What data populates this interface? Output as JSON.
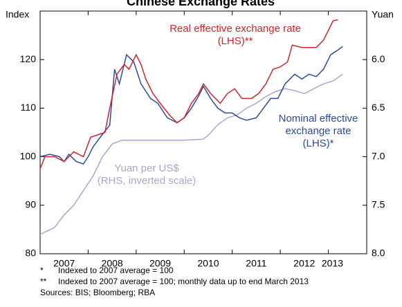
{
  "chart_data": {
    "type": "line",
    "title": "Chinese Exchange Rates",
    "ylabel": "Index",
    "y2label": "Yuan",
    "xlim": [
      2007,
      2013.8
    ],
    "xticks": [
      2007,
      2008,
      2009,
      2010,
      2011,
      2012,
      2013
    ],
    "xlabels": [
      "2007",
      "2008",
      "2009",
      "2010",
      "2011",
      "2012",
      "2013"
    ],
    "ylim": [
      80,
      130
    ],
    "yticks": [
      80,
      90,
      100,
      110,
      120
    ],
    "y2lim": [
      8.0,
      5.5
    ],
    "y2ticks": [
      {
        "value": 8.0,
        "label": "8.0"
      },
      7.5,
      {
        "value": 7.0,
        "label": "7.0"
      },
      6.5,
      {
        "value": 6.0,
        "label": "6.0"
      }
    ],
    "series": [
      {
        "label_lines": [
          "Real effective exchange rate",
          "(LHS)**"
        ],
        "color": "#d1232a",
        "x": [
          2007.0,
          2007.1,
          2007.3,
          2007.5,
          2007.7,
          2007.9,
          2008.05,
          2008.2,
          2008.35,
          2008.45,
          2008.6,
          2008.75,
          2008.85,
          2009.0,
          2009.1,
          2009.2,
          2009.35,
          2009.5,
          2009.7,
          2009.85,
          2010.0,
          2010.15,
          2010.3,
          2010.4,
          2010.55,
          2010.75,
          2010.9,
          2011.05,
          2011.2,
          2011.4,
          2011.55,
          2011.7,
          2011.85,
          2012.0,
          2012.15,
          2012.25,
          2012.45,
          2012.6,
          2012.75,
          2012.9,
          2013.0,
          2013.1,
          2013.2
        ],
        "values": [
          97.5,
          100,
          100,
          99,
          101,
          100,
          104,
          104.5,
          105,
          110,
          117,
          119,
          118,
          121,
          119,
          116,
          113,
          111,
          108.5,
          107,
          108,
          111,
          113,
          115,
          113,
          111,
          113,
          114,
          112,
          112,
          113,
          115,
          118,
          118.5,
          119.5,
          123,
          122.5,
          122.5,
          122.5,
          124,
          126,
          128,
          128.2
        ]
      },
      {
        "label_lines": [
          "Nominal effective",
          "exchange rate",
          "(LHS)*"
        ],
        "color": "#2b4a9b",
        "x": [
          2007.0,
          2007.2,
          2007.4,
          2007.5,
          2007.6,
          2007.75,
          2007.9,
          2008.0,
          2008.1,
          2008.25,
          2008.45,
          2008.55,
          2008.65,
          2008.8,
          2008.95,
          2009.1,
          2009.3,
          2009.45,
          2009.65,
          2009.85,
          2010.0,
          2010.15,
          2010.3,
          2010.4,
          2010.55,
          2010.7,
          2010.85,
          2011.0,
          2011.15,
          2011.3,
          2011.5,
          2011.65,
          2011.8,
          2011.95,
          2012.1,
          2012.3,
          2012.45,
          2012.6,
          2012.75,
          2012.9,
          2013.05,
          2013.2,
          2013.3
        ],
        "values": [
          100,
          100.5,
          100,
          99,
          100.5,
          99,
          98.5,
          100,
          102,
          104,
          106.5,
          118,
          115,
          121,
          119.5,
          115,
          112,
          111,
          108,
          107,
          108,
          110,
          112.5,
          114.5,
          112,
          110,
          109,
          109,
          108,
          107.5,
          108,
          110,
          112,
          112,
          115,
          117,
          116,
          117,
          116.5,
          118,
          121,
          122,
          122.7
        ]
      },
      {
        "label_lines": [
          "Yuan per US$",
          "(RHS, inverted scale)"
        ],
        "color": "#a9a6d0",
        "axis": "y2",
        "x": [
          2007.0,
          2007.3,
          2007.5,
          2007.7,
          2007.9,
          2008.1,
          2008.3,
          2008.5,
          2008.7,
          2009.0,
          2009.5,
          2010.0,
          2010.4,
          2010.5,
          2010.7,
          2010.9,
          2011.1,
          2011.3,
          2011.5,
          2011.7,
          2011.9,
          2012.1,
          2012.3,
          2012.5,
          2012.7,
          2012.9,
          2013.1,
          2013.3
        ],
        "values": [
          7.8,
          7.73,
          7.6,
          7.5,
          7.35,
          7.2,
          7.0,
          6.87,
          6.83,
          6.83,
          6.83,
          6.83,
          6.82,
          6.78,
          6.67,
          6.6,
          6.57,
          6.5,
          6.45,
          6.38,
          6.33,
          6.3,
          6.32,
          6.35,
          6.3,
          6.25,
          6.22,
          6.15
        ]
      }
    ],
    "footnotes": [
      [
        "*",
        "Indexed to 2007 average = 100"
      ],
      [
        "**",
        "Indexed to 2007 average = 100; monthly data up to end March 2013"
      ],
      [
        "Sources: BIS; Bloomberg; RBA"
      ]
    ]
  }
}
